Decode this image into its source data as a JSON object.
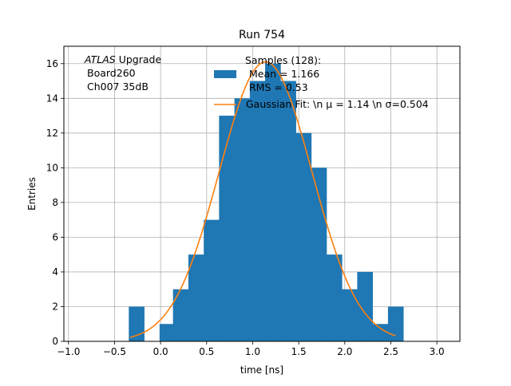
{
  "chart_data": {
    "type": "bar",
    "title": "Run 754",
    "xlabel": "time [ns]",
    "ylabel": "Entries",
    "xlim": [
      -1.05,
      3.25
    ],
    "ylim": [
      0,
      17
    ],
    "x_ticks": [
      -1.0,
      -0.5,
      0.0,
      0.5,
      1.0,
      1.5,
      2.0,
      2.5,
      3.0
    ],
    "x_tick_labels": [
      "−1.0",
      "−0.5",
      "0.0",
      "0.5",
      "1.0",
      "1.5",
      "2.0",
      "2.5",
      "3.0"
    ],
    "y_ticks": [
      0,
      2,
      4,
      6,
      8,
      10,
      12,
      14,
      16
    ],
    "y_tick_labels": [
      "0",
      "2",
      "4",
      "6",
      "8",
      "10",
      "12",
      "14",
      "16"
    ],
    "grid": true,
    "bin_width": 0.1667,
    "histogram": [
      {
        "x0": -0.345,
        "count": 2
      },
      {
        "x0": -0.178,
        "count": 0
      },
      {
        "x0": -0.011,
        "count": 1
      },
      {
        "x0": 0.135,
        "count": 3
      },
      {
        "x0": 0.302,
        "count": 5
      },
      {
        "x0": 0.469,
        "count": 7
      },
      {
        "x0": 0.635,
        "count": 13
      },
      {
        "x0": 0.802,
        "count": 14
      },
      {
        "x0": 0.969,
        "count": 15
      },
      {
        "x0": 1.135,
        "count": 16
      },
      {
        "x0": 1.302,
        "count": 15
      },
      {
        "x0": 1.469,
        "count": 12
      },
      {
        "x0": 1.635,
        "count": 10
      },
      {
        "x0": 1.802,
        "count": 5
      },
      {
        "x0": 1.969,
        "count": 3
      },
      {
        "x0": 2.135,
        "count": 4
      },
      {
        "x0": 2.302,
        "count": 1
      },
      {
        "x0": 2.469,
        "count": 2
      }
    ],
    "fit": {
      "mu": 1.14,
      "sigma": 0.504,
      "amplitude": 16.1,
      "x_range": [
        -0.33,
        2.55
      ]
    },
    "colors": {
      "bars": "#1f77b4",
      "fit": "#ff7f0e",
      "grid": "#b0b0b0"
    },
    "annotation": {
      "line1_italic": "ATLAS",
      "line1_rest": " Upgrade",
      "line2": "Board260",
      "line3": "Ch007 35dB"
    },
    "legend": {
      "placement": "top-right",
      "samples_line1": "Samples (128):",
      "samples_line2": "Mean = 1.166",
      "samples_line3": "RMS = 0.53",
      "fit_label": "Gaussian Fit: \\n μ = 1.14 \\n σ=0.504"
    }
  }
}
